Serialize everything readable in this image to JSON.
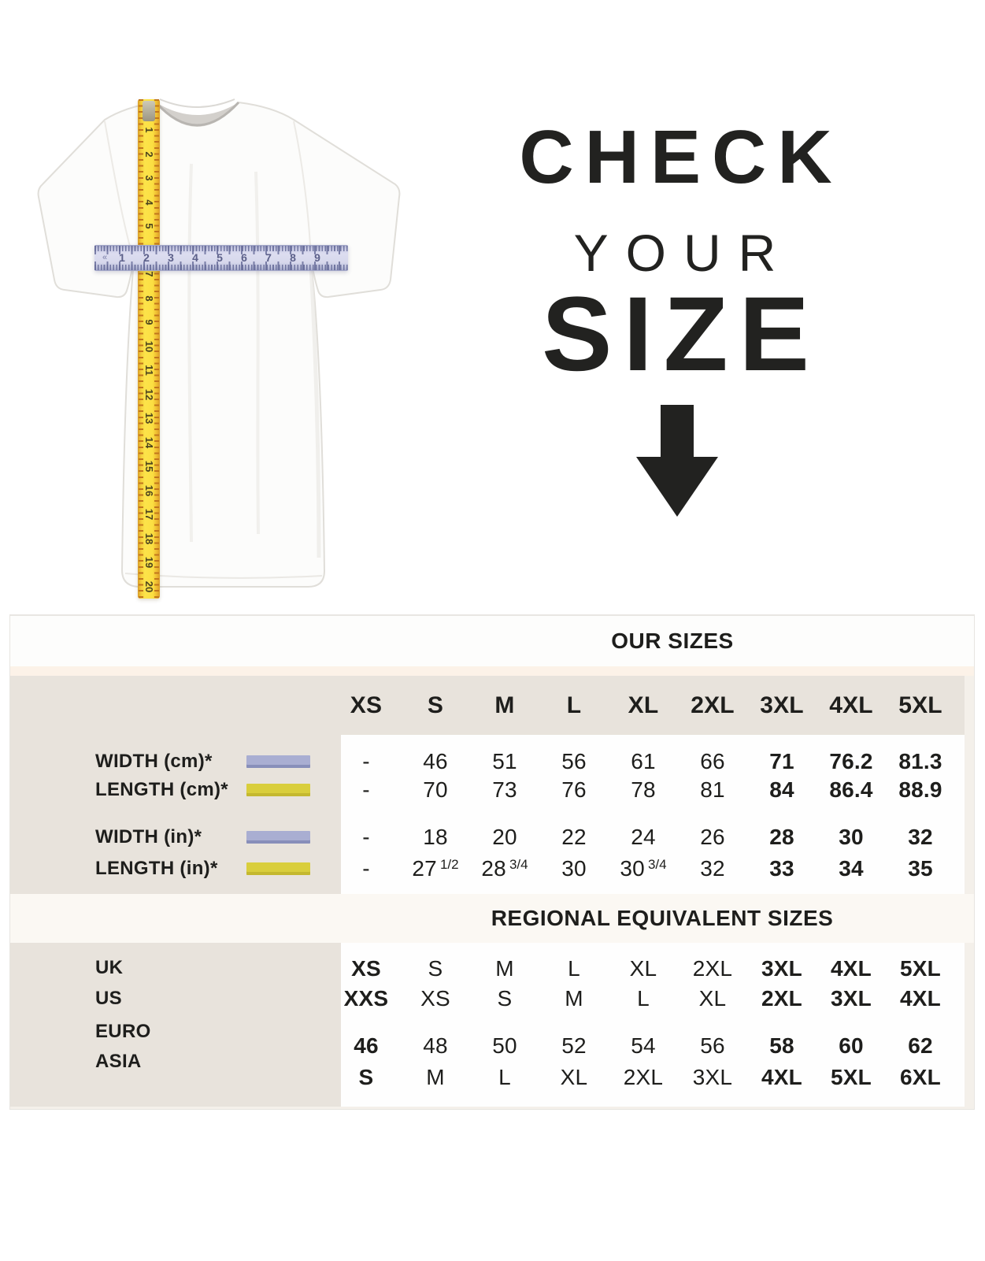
{
  "hero": {
    "headline": {
      "line1": "CHECK",
      "line2": "YOUR",
      "line3": "SIZE"
    },
    "tape_numbers": [
      "1",
      "2",
      "3",
      "4",
      "5",
      "6",
      "7",
      "8",
      "9",
      "10",
      "11",
      "12",
      "13",
      "14",
      "15",
      "16",
      "17",
      "18",
      "19",
      "20"
    ],
    "ruler_numbers": [
      "1",
      "2",
      "3",
      "4",
      "5",
      "6",
      "7",
      "8",
      "9"
    ]
  },
  "colors": {
    "purple_swatch": "#a9aed2",
    "yellow_swatch": "#d9ce3c",
    "tape_yellow": "#fbdf42",
    "ruler_lavender": "#d7d8ec",
    "beige_panel": "#e8e3dc",
    "cream_strip": "#fcf2e8",
    "text_black": "#1e1e1c"
  },
  "chart_data": [
    {
      "type": "table",
      "title": "OUR SIZES",
      "columns": [
        "XS",
        "S",
        "M",
        "L",
        "XL",
        "2XL",
        "3XL",
        "4XL",
        "5XL"
      ],
      "rows": [
        {
          "label": "WIDTH (cm)*",
          "swatch": "purple",
          "values": [
            "-",
            "46",
            "51",
            "56",
            "61",
            "66",
            "71",
            "76.2",
            "81.3"
          ],
          "bold_indices": [
            6,
            7,
            8
          ]
        },
        {
          "label": "LENGTH (cm)*",
          "swatch": "yellow",
          "values": [
            "-",
            "70",
            "73",
            "76",
            "78",
            "81",
            "84",
            "86.4",
            "88.9"
          ],
          "bold_indices": [
            6,
            7,
            8
          ]
        },
        {
          "label": "WIDTH (in)*",
          "swatch": "purple",
          "values": [
            "-",
            "18",
            "20",
            "22",
            "24",
            "26",
            "28",
            "30",
            "32"
          ],
          "bold_indices": [
            6,
            7,
            8
          ]
        },
        {
          "label": "LENGTH (in)*",
          "swatch": "yellow",
          "values": [
            "-",
            "27 1/2",
            "28 3/4",
            "30",
            "30 3/4",
            "32",
            "33",
            "34",
            "35"
          ],
          "bold_indices": [
            6,
            7,
            8
          ]
        }
      ]
    },
    {
      "type": "table",
      "title": "REGIONAL EQUIVALENT SIZES",
      "columns": [
        "XS",
        "S",
        "M",
        "L",
        "XL",
        "2XL",
        "3XL",
        "4XL",
        "5XL"
      ],
      "rows": [
        {
          "label": "UK",
          "values": [
            "XS",
            "S",
            "M",
            "L",
            "XL",
            "2XL",
            "3XL",
            "4XL",
            "5XL"
          ],
          "bold_indices": [
            0,
            6,
            7,
            8
          ]
        },
        {
          "label": "US",
          "values": [
            "XXS",
            "XS",
            "S",
            "M",
            "L",
            "XL",
            "2XL",
            "3XL",
            "4XL"
          ],
          "bold_indices": [
            0,
            6,
            7,
            8
          ]
        },
        {
          "label": "EURO",
          "values": [
            "46",
            "48",
            "50",
            "52",
            "54",
            "56",
            "58",
            "60",
            "62"
          ],
          "bold_indices": [
            0,
            6,
            7,
            8
          ]
        },
        {
          "label": "ASIA",
          "values": [
            "S",
            "M",
            "L",
            "XL",
            "2XL",
            "3XL",
            "4XL",
            "5XL",
            "6XL"
          ],
          "bold_indices": [
            0,
            6,
            7,
            8
          ]
        }
      ]
    }
  ]
}
